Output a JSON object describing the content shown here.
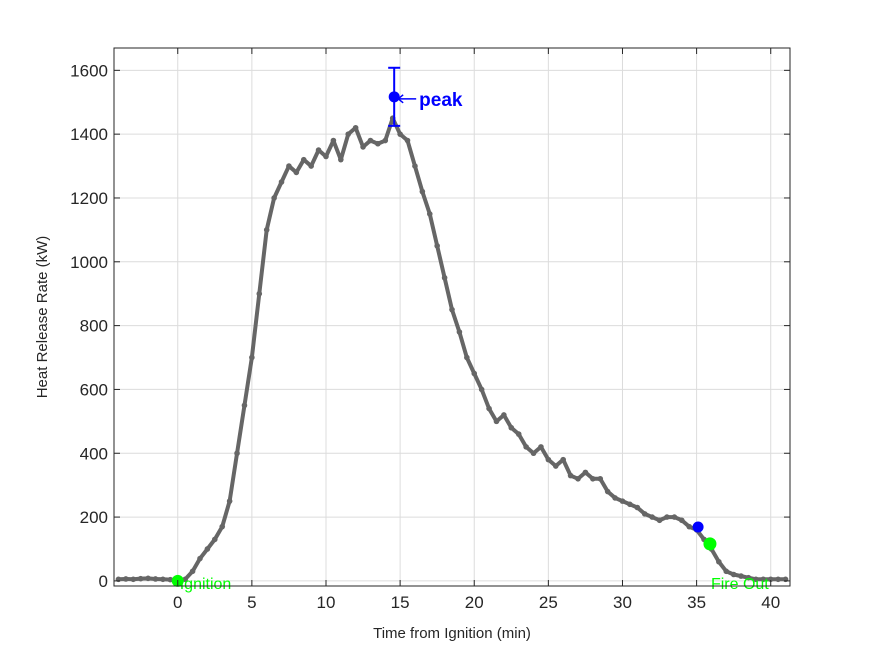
{
  "chart_data": {
    "type": "line",
    "xlabel": "Time from Ignition (min)",
    "ylabel": "Heat Release Rate (kW)",
    "xlim": [
      -4.3,
      41.3
    ],
    "ylim": [
      -16,
      1670
    ],
    "xticks": [
      0,
      5,
      10,
      15,
      20,
      25,
      30,
      35,
      40
    ],
    "yticks": [
      0,
      200,
      400,
      600,
      800,
      1000,
      1200,
      1400,
      1600
    ],
    "grid": true,
    "series": [
      {
        "color": "#666666",
        "x": [
          -4,
          -3.5,
          -3,
          -2.5,
          -2,
          -1.5,
          -1,
          -0.5,
          0,
          0.5,
          1,
          1.5,
          2,
          2.5,
          3,
          3.5,
          4,
          4.5,
          5,
          5.5,
          6,
          6.5,
          7,
          7.5,
          8,
          8.5,
          9,
          9.5,
          10,
          10.5,
          11,
          11.5,
          12,
          12.5,
          13,
          13.5,
          14,
          14.5,
          15,
          15.5,
          16,
          16.5,
          17,
          17.5,
          18,
          18.5,
          19,
          19.5,
          20,
          20.5,
          21,
          21.5,
          22,
          22.5,
          23,
          23.5,
          24,
          24.5,
          25,
          25.5,
          26,
          26.5,
          27,
          27.5,
          28,
          28.5,
          29,
          29.5,
          30,
          30.5,
          31,
          31.5,
          32,
          32.5,
          33,
          33.5,
          34,
          34.5,
          35,
          35.5,
          36,
          36.5,
          37,
          37.5,
          38,
          38.5,
          39,
          39.5,
          40,
          40.5,
          41
        ],
        "y": [
          5,
          6,
          5,
          7,
          8,
          6,
          5,
          4,
          0,
          5,
          30,
          70,
          100,
          130,
          170,
          250,
          400,
          550,
          700,
          900,
          1100,
          1200,
          1250,
          1300,
          1280,
          1320,
          1300,
          1350,
          1330,
          1380,
          1320,
          1400,
          1420,
          1360,
          1380,
          1370,
          1380,
          1450,
          1400,
          1380,
          1300,
          1220,
          1150,
          1050,
          950,
          850,
          780,
          700,
          650,
          600,
          540,
          500,
          520,
          480,
          460,
          420,
          400,
          420,
          380,
          360,
          380,
          330,
          320,
          340,
          320,
          320,
          280,
          260,
          250,
          240,
          230,
          210,
          200,
          190,
          200,
          200,
          190,
          170,
          160,
          130,
          100,
          60,
          30,
          20,
          15,
          10,
          5,
          5,
          5,
          5,
          5
        ]
      }
    ],
    "annotations": {
      "peak": {
        "label": "peak",
        "x": 14.6,
        "y": 1517,
        "err_low": 1426,
        "err_high": 1608,
        "color": "#0000ff"
      },
      "marker_blue": {
        "x": 35.1,
        "y": 169,
        "color": "#0000ff"
      },
      "ignition": {
        "label": "Ignition",
        "x": 0,
        "y": 0,
        "color": "#00ff00"
      },
      "fire_out": {
        "label": "Fire Out",
        "x": 35.9,
        "y": 116,
        "color": "#00ff00"
      }
    }
  }
}
